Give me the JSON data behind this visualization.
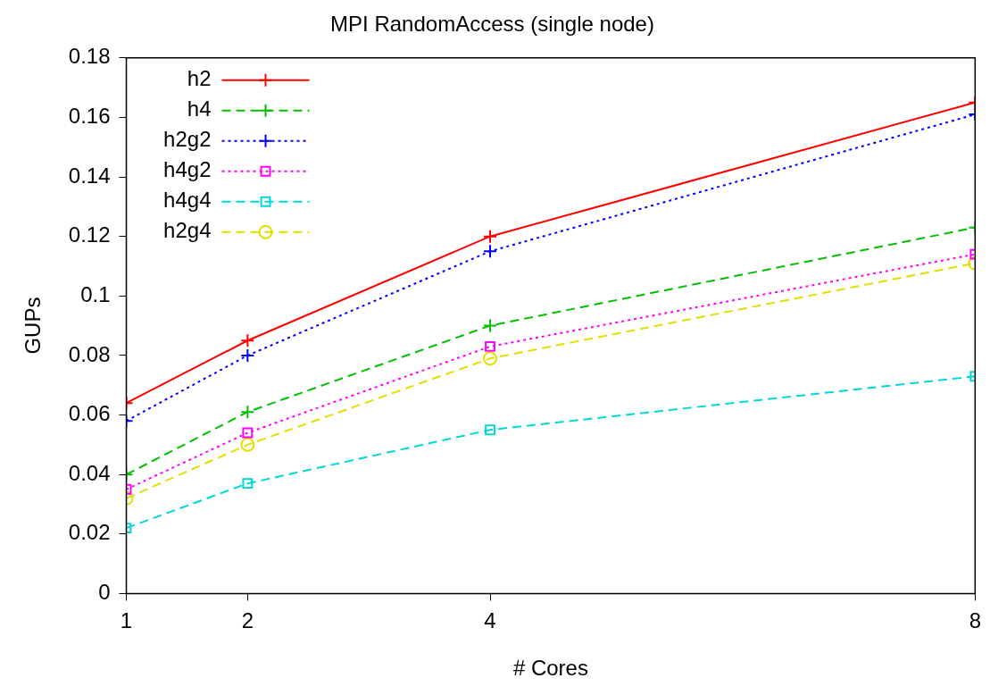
{
  "chart_data": {
    "type": "line",
    "title": "MPI RandomAccess (single node)",
    "xlabel": "# Cores",
    "ylabel": "GUPs",
    "x": [
      1,
      2,
      4,
      8
    ],
    "xlim": [
      1,
      8
    ],
    "xticks": [
      1,
      2,
      4,
      8
    ],
    "ylim": [
      0,
      0.18
    ],
    "yticks": [
      0,
      0.02,
      0.04,
      0.06,
      0.08,
      0.1,
      0.12,
      0.14,
      0.16,
      0.18
    ],
    "grid": false,
    "legend": "top left",
    "series": [
      {
        "name": "h2",
        "color": "#ff0000",
        "values": [
          0.064,
          0.085,
          0.12,
          0.165
        ],
        "marker": "cross",
        "line_style": "solid"
      },
      {
        "name": "h4",
        "color": "#00c000",
        "values": [
          0.04,
          0.061,
          0.09,
          0.123
        ],
        "marker": "cross",
        "line_style": "dashed"
      },
      {
        "name": "h2g2",
        "color": "#0000ff",
        "values": [
          0.058,
          0.08,
          0.115,
          0.161
        ],
        "marker": "cross",
        "line_style": "dotted"
      },
      {
        "name": "h4g2",
        "color": "#ff00ff",
        "values": [
          0.035,
          0.054,
          0.083,
          0.114
        ],
        "marker": "square",
        "line_style": "dotted"
      },
      {
        "name": "h4g4",
        "color": "#00d8d8",
        "values": [
          0.022,
          0.037,
          0.055,
          0.073
        ],
        "marker": "square",
        "line_style": "dashed"
      },
      {
        "name": "h2g4",
        "color": "#e0e000",
        "values": [
          0.032,
          0.05,
          0.079,
          0.111
        ],
        "marker": "circle",
        "line_style": "dashed"
      }
    ]
  }
}
